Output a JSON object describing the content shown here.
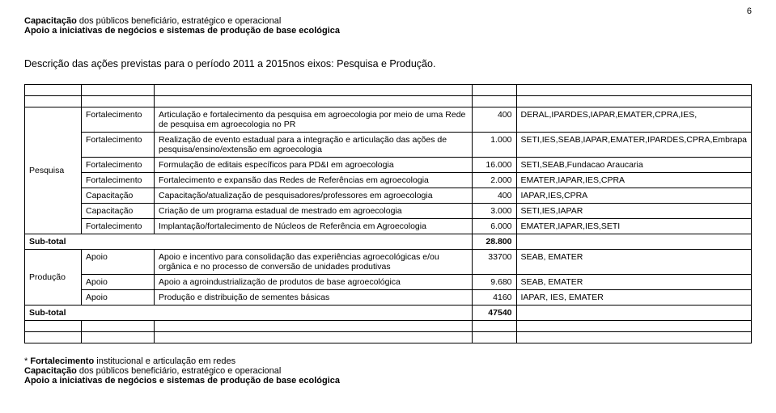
{
  "page_number": "6",
  "header": {
    "line1_bold": "Capacitação",
    "line1_rest": " dos públicos beneficiário, estratégico e operacional",
    "line2": "Apoio a iniciativas de negócios e sistemas de produção de base ecológica"
  },
  "description": "Descrição das ações previstas para o período 2011 a 2015nos eixos: Pesquisa e Produção.",
  "sections": [
    {
      "category": "Pesquisa",
      "rows": [
        {
          "c2": "Fortalecimento",
          "c3": "Articulação e fortalecimento da pesquisa em agroecologia por meio de uma  Rede de pesquisa em agroecologia no PR",
          "c4": "400",
          "c5": "DERAL,IPARDES,IAPAR,EMATER,CPRA,IES,"
        },
        {
          "c2": "Fortalecimento",
          "c3": "Realização de evento estadual para a integração e articulação das ações de pesquisa/ensino/extensão em agroecologia",
          "c4": "1.000",
          "c5": "SETI,IES,SEAB,IAPAR,EMATER,IPARDES,CPRA,Embrapa"
        },
        {
          "c2": "Fortalecimento",
          "c3": "Formulação de editais específicos para PD&I em agroecologia",
          "c4": "16.000",
          "c5": "SETI,SEAB,Fundacao Araucaria"
        },
        {
          "c2": "Fortalecimento",
          "c3": "Fortalecimento e expansão das Redes de Referências em agroecologia",
          "c4": "2.000",
          "c5": "EMATER,IAPAR,IES,CPRA"
        },
        {
          "c2": "Capacitação",
          "c3": "Capacitação/atualização de pesquisadores/professores em agroecologia",
          "c4": "400",
          "c5": "IAPAR,IES,CPRA"
        },
        {
          "c2": "Capacitação",
          "c3": "Criação de um programa estadual de mestrado em agroecologia",
          "c4": "3.000",
          "c5": "SETI,IES,IAPAR"
        },
        {
          "c2": "Fortalecimento",
          "c3": "Implantação/fortalecimento de Núcleos de Referência em Agroecologia",
          "c4": "6.000",
          "c5": "EMATER,IAPAR,IES,SETI"
        }
      ],
      "subtotal_label": "Sub-total",
      "subtotal_value": "28.800"
    },
    {
      "category": "Produção",
      "rows": [
        {
          "c2": "Apoio",
          "c3": "Apoio e incentivo para consolidação das experiências agroecológicas e/ou orgânica e no processo de conversão de unidades produtivas",
          "c4": "33700",
          "c5": "SEAB, EMATER"
        },
        {
          "c2": "Apoio",
          "c3": "Apoio a agroindustrialização de produtos de base agroecológica",
          "c4": "9.680",
          "c5": "SEAB, EMATER"
        },
        {
          "c2": "Apoio",
          "c3": "Produção e distribuição de sementes básicas",
          "c4": "4160",
          "c5": "IAPAR, IES, EMATER"
        }
      ],
      "subtotal_label": "Sub-total",
      "subtotal_value": "47540"
    }
  ],
  "footnote": {
    "l1_prefix": "* ",
    "l1_bold": "Fortalecimento",
    "l1_rest": " institucional e articulação em redes",
    "l2_bold": "Capacitação",
    "l2_rest": " dos públicos beneficiário, estratégico e operacional",
    "l3": "Apoio a iniciativas de negócios e sistemas de produção de base ecológica"
  }
}
